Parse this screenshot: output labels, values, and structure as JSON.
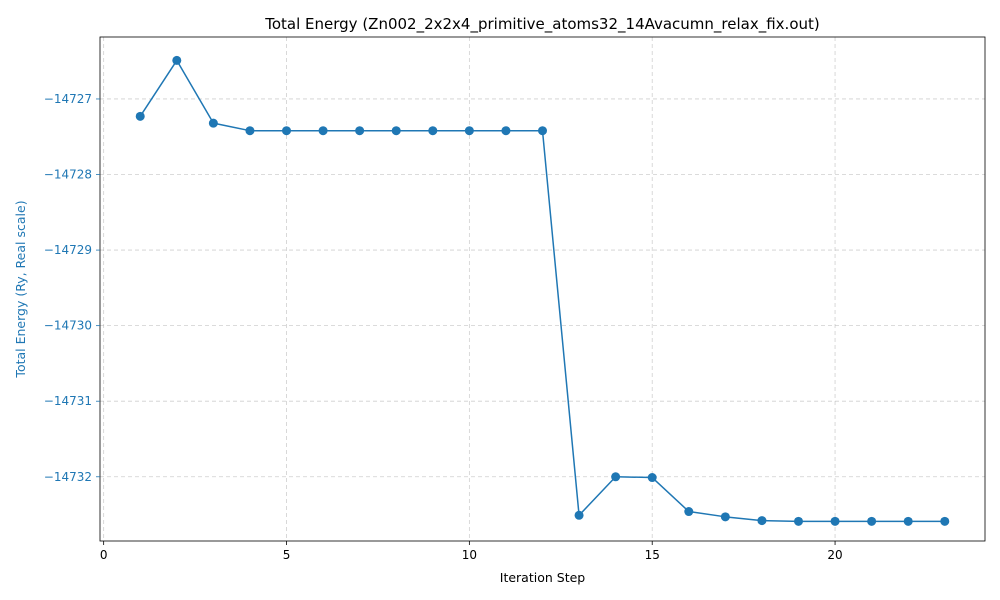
{
  "chart_data": {
    "type": "line",
    "title": "Total Energy (Zn002_2x2x4_primitive_atoms32_14Avacumn_relax_fix.out)",
    "xlabel": "Iteration Step",
    "ylabel": "Total Energy (Ry, Real scale)",
    "xlim": [
      -0.1,
      24.1
    ],
    "ylim": [
      -14732.85,
      -14726.18
    ],
    "xticks": [
      0,
      5,
      10,
      15,
      20
    ],
    "xtick_labels": [
      "0",
      "5",
      "10",
      "15",
      "20"
    ],
    "yticks": [
      -14727,
      -14728,
      -14729,
      -14730,
      -14731,
      -14732
    ],
    "ytick_labels": [
      "−14727",
      "−14728",
      "−14729",
      "−14730",
      "−14731",
      "−14732"
    ],
    "grid": true,
    "series": [
      {
        "color": "#1f77b4",
        "marker": "circle",
        "x": [
          1,
          2,
          3,
          4,
          5,
          6,
          7,
          8,
          9,
          10,
          11,
          12,
          13,
          14,
          15,
          16,
          17,
          18,
          19,
          20,
          21,
          22,
          23
        ],
        "y": [
          -14727.23,
          -14726.49,
          -14727.32,
          -14727.42,
          -14727.42,
          -14727.42,
          -14727.42,
          -14727.42,
          -14727.42,
          -14727.42,
          -14727.42,
          -14727.42,
          -14732.51,
          -14732.0,
          -14732.01,
          -14732.46,
          -14732.53,
          -14732.58,
          -14732.59,
          -14732.59,
          -14732.59,
          -14732.59,
          -14732.59
        ]
      }
    ]
  }
}
